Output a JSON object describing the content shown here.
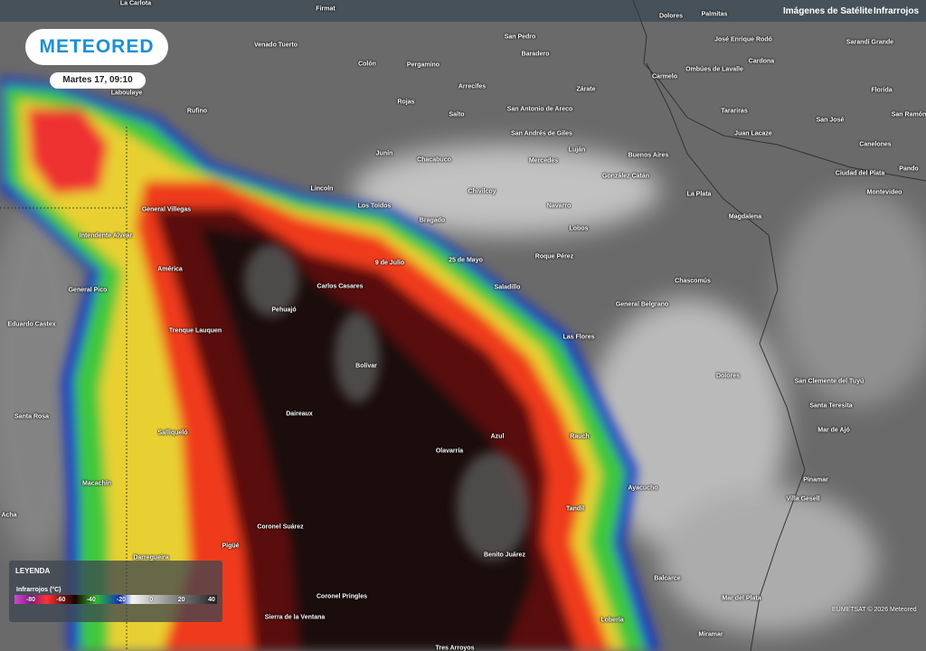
{
  "header": {
    "section": "Imágenes de Satélite",
    "layer": "Infrarrojos"
  },
  "logo": "METEORED",
  "timestamp": "Martes 17, 09:10",
  "legend": {
    "title": "LEYENDA",
    "subtitle": "Infrarrojos (°C)",
    "ticks": [
      -80,
      -60,
      -40,
      -20,
      0,
      20,
      40
    ]
  },
  "credit": "EUMETSAT © 2026 Meteored",
  "places": [
    "La Carlota",
    "Firmat",
    "Dolores",
    "Palmitas",
    "Venado Tuerto",
    "San Pedro",
    "José Enrique Rodó",
    "Sarandí Grande",
    "Baradero",
    "Colón",
    "Pergamino",
    "Carmelo",
    "Ombúes de Lavalle",
    "Cardona",
    "Laboulaye",
    "Arrecifes",
    "Zárate",
    "Florida",
    "Rufino",
    "Rojas",
    "Salto",
    "San Antonio de Areco",
    "Tarariras",
    "San José",
    "San Ramón",
    "San Andrés de Giles",
    "Juan Lacaze",
    "Junín",
    "Chacabuco",
    "Luján",
    "Buenos Aires",
    "Mercedes",
    "Canelones",
    "Ciudad del Plata",
    "Pando",
    "González Catán",
    "Lincoln",
    "Chivilcoy",
    "La Plata",
    "Montevideo",
    "General Villegas",
    "Los Toldos",
    "Navarro",
    "Bragado",
    "Magdalena",
    "Intendente Alvear",
    "Lobos",
    "América",
    "9 de Julio",
    "25 de Mayo",
    "Roque Pérez",
    "General Pico",
    "Carlos Casares",
    "Saladillo",
    "Chascomús",
    "Pehuajó",
    "General Belgrano",
    "Eduardo Castex",
    "Trenque Lauquen",
    "Las Flores",
    "Bolívar",
    "Dolores",
    "San Clemente del Tuyú",
    "Santa Rosa",
    "Daireaux",
    "Santa Teresita",
    "Salliqueló",
    "Azul",
    "Rauch",
    "Mar de Ajó",
    "Olavarría",
    "Macachín",
    "Ayacucho",
    "Pinamar",
    "Villa Gesell",
    "Tandil",
    "Acha",
    "Coronel Suárez",
    "Darregueira",
    "Pigüé",
    "Benito Juárez",
    "Balcarce",
    "Coronel Pringles",
    "Mar del Plata",
    "Sierra de la Ventana",
    "Lobería",
    "Miramar",
    "Tres Arroyos"
  ]
}
